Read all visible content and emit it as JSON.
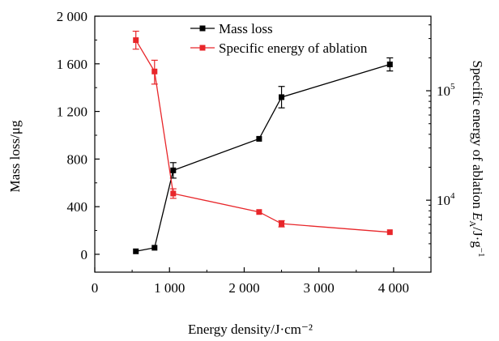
{
  "chart_data": {
    "type": "line",
    "title": "",
    "xlabel": "Energy density/J·cm⁻²",
    "ylabel_left": "Mass loss/μg",
    "ylabel_right_main": "Specific energy of ablation ",
    "ylabel_right_symbol": "E",
    "ylabel_right_sub": "A",
    "ylabel_right_unit": "/J·g",
    "ylabel_right_sup": "−1",
    "xlim": [
      0,
      4500
    ],
    "ylim_left": [
      -150,
      2000
    ],
    "ylim_right": [
      2200,
      480000
    ],
    "right_axis_scale": "log",
    "x_ticks": [
      {
        "value": 0,
        "label": "0"
      },
      {
        "value": 1000,
        "label": "1 000"
      },
      {
        "value": 2000,
        "label": "2 000"
      },
      {
        "value": 3000,
        "label": "3 000"
      },
      {
        "value": 4000,
        "label": "4 000"
      }
    ],
    "y_left_ticks": [
      {
        "value": 0,
        "label": "0"
      },
      {
        "value": 400,
        "label": "400"
      },
      {
        "value": 800,
        "label": "800"
      },
      {
        "value": 1200,
        "label": "1 200"
      },
      {
        "value": 1600,
        "label": "1 600"
      },
      {
        "value": 2000,
        "label": "2 000"
      }
    ],
    "y_right_ticks": [
      {
        "value": 10000,
        "base": "10",
        "exp": "4"
      },
      {
        "value": 100000,
        "base": "10",
        "exp": "5"
      }
    ],
    "legend_position": "top",
    "series": [
      {
        "name": "Mass loss",
        "axis": "left",
        "color": "#000000",
        "marker": "square",
        "x": [
          550,
          800,
          1050,
          2200,
          2500,
          3950
        ],
        "y": [
          25,
          55,
          705,
          970,
          1320,
          1595
        ],
        "err": [
          0,
          0,
          65,
          0,
          90,
          55
        ]
      },
      {
        "name": "Specific energy of ablation",
        "axis": "right",
        "color": "#e8262a",
        "marker": "square",
        "x": [
          550,
          800,
          1050,
          2200,
          2500,
          3950
        ],
        "y": [
          290000,
          150000,
          11500,
          7800,
          6100,
          5100
        ],
        "err_low": [
          240000,
          115000,
          10400,
          7800,
          5700,
          5100
        ],
        "err_high": [
          350000,
          190000,
          12700,
          7800,
          6500,
          5100
        ]
      }
    ]
  }
}
